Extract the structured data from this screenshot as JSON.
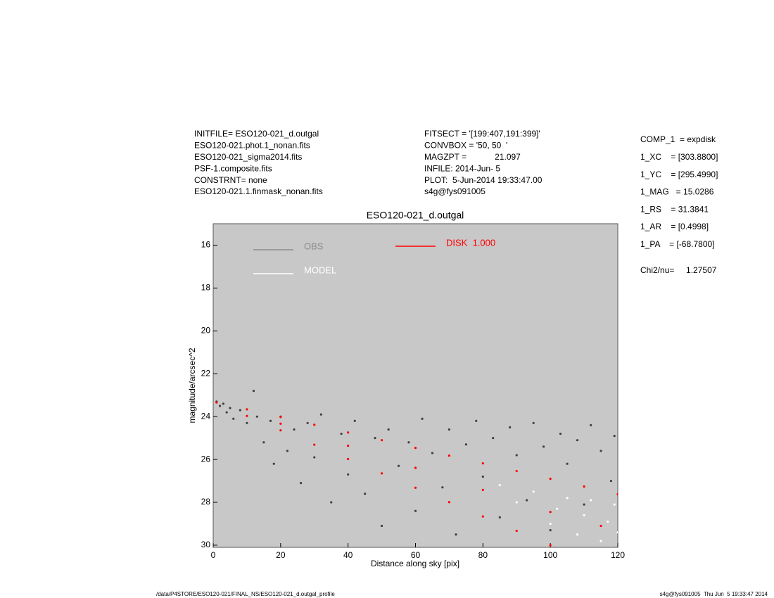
{
  "header_left": [
    "INITFILE= ESO120-021_d.outgal",
    "ESO120-021.phot.1_nonan.fits",
    "ESO120-021_sigma2014.fits",
    "PSF-1.composite.fits",
    "CONSTRNT= none",
    "ESO120-021.1.finmask_nonan.fits"
  ],
  "header_mid": [
    "FITSECT = '[199:407,191:399]'",
    "CONVBOX = '50, 50  '",
    "MAGZPT =            21.097",
    "INFILE: 2014-Jun- 5",
    "PLOT:  5-Jun-2014 19:33:47.00",
    "s4g@fys091005"
  ],
  "params": [
    "COMP_1  = expdisk",
    "1_XC    = [303.8800]",
    "1_YC    = [295.4990]",
    "1_MAG   = 15.0286",
    "1_RS    = 31.3841",
    "1_AR    = [0.4998]",
    "1_PA    = [-68.7800]"
  ],
  "chi2": "Chi2/nu=     1.27507",
  "footer_left": "/data/P4STORE/ESO120-021/FINAL_NS/ESO120-021_d.outgal_profile",
  "footer_right": "s4g@fys091005  Thu Jun  5 19:33:47 2014",
  "chart_data": {
    "type": "scatter",
    "title": "ESO120-021_d.outgal",
    "x_label": "Distance along sky [pix]",
    "y_label": "magnitude/arcsec^2",
    "xlim": [
      0,
      120
    ],
    "ylim": [
      30.1,
      15.0
    ],
    "xticks": [
      0,
      20,
      40,
      60,
      80,
      100,
      120
    ],
    "yticks": [
      16,
      18,
      20,
      22,
      24,
      26,
      28,
      30
    ],
    "background": "#c8c8c8",
    "series": [
      {
        "name": "OBS",
        "color": "#404040",
        "legend_color": "#8c8c8c",
        "x": [
          1,
          2,
          3,
          4,
          5,
          6,
          8,
          10,
          12,
          13,
          15,
          17,
          18,
          20,
          22,
          24,
          26,
          28,
          30,
          32,
          35,
          38,
          40,
          42,
          45,
          48,
          50,
          52,
          55,
          58,
          60,
          62,
          65,
          68,
          70,
          72,
          75,
          78,
          80,
          83,
          85,
          88,
          90,
          93,
          95,
          98,
          100,
          103,
          105,
          108,
          110,
          112,
          115,
          118,
          119
        ],
        "values": [
          23.3,
          23.5,
          23.4,
          23.8,
          23.6,
          24.1,
          23.7,
          24.3,
          22.8,
          24.0,
          25.2,
          24.2,
          26.2,
          24.0,
          25.6,
          24.6,
          27.1,
          24.3,
          25.9,
          23.9,
          28.0,
          24.8,
          26.7,
          24.2,
          27.6,
          25.0,
          29.1,
          24.6,
          26.3,
          25.2,
          28.4,
          24.1,
          25.7,
          27.3,
          24.6,
          29.5,
          25.3,
          24.2,
          26.8,
          25.0,
          28.7,
          24.5,
          25.8,
          27.9,
          24.3,
          25.4,
          29.3,
          24.8,
          26.2,
          25.1,
          28.1,
          24.4,
          25.6,
          27.0,
          24.9
        ]
      },
      {
        "name": "DISK  1.000",
        "color": "#ff0000",
        "legend_color": "#ff0000",
        "x": [
          1,
          10,
          20,
          30,
          40,
          50,
          60,
          70,
          80,
          90,
          100,
          110,
          120,
          10,
          20,
          30,
          40,
          50,
          60,
          70,
          80,
          90,
          100,
          20,
          40,
          60,
          80,
          100,
          115
        ],
        "values": [
          23.34,
          23.66,
          24.02,
          24.38,
          24.74,
          25.1,
          25.46,
          25.82,
          26.18,
          26.54,
          26.9,
          27.26,
          27.62,
          23.97,
          24.64,
          25.31,
          25.98,
          26.65,
          27.32,
          27.99,
          28.66,
          29.33,
          30.0,
          24.33,
          25.36,
          26.39,
          27.42,
          28.45,
          29.1
        ]
      },
      {
        "name": "MODEL",
        "color": "#ffffff",
        "legend_color": "#ffffff",
        "x": [
          85,
          90,
          95,
          100,
          102,
          105,
          108,
          110,
          112,
          115,
          117,
          119,
          120
        ],
        "values": [
          27.2,
          28.0,
          27.5,
          29.0,
          28.3,
          27.8,
          29.5,
          28.6,
          27.9,
          29.8,
          28.9,
          28.1,
          29.4
        ]
      }
    ]
  }
}
